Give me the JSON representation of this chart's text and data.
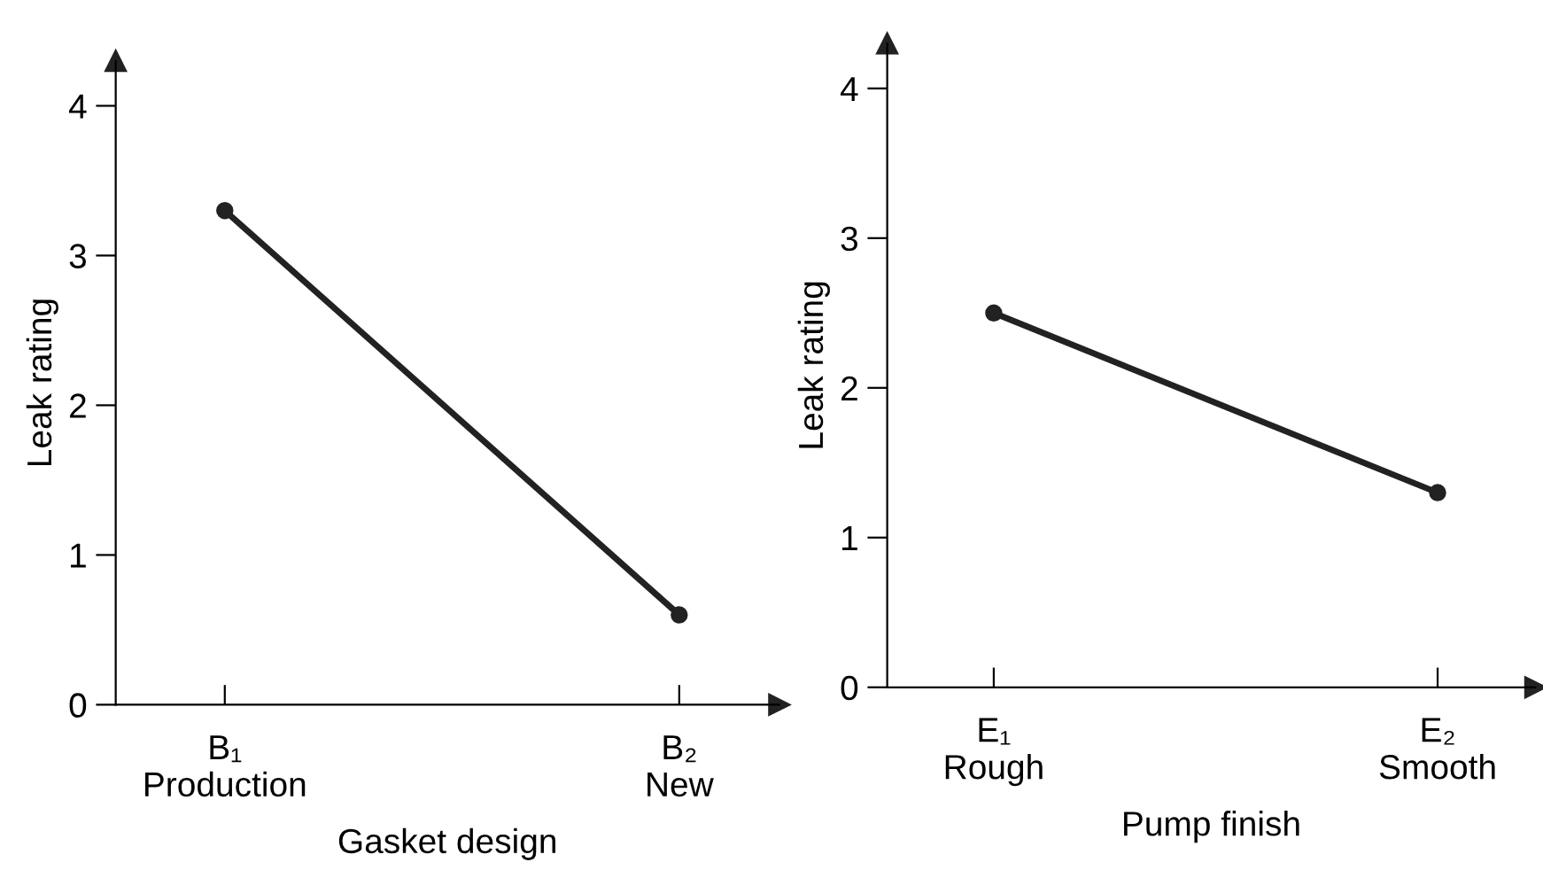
{
  "chart_data": [
    {
      "type": "line",
      "xlabel": "Gasket design",
      "ylabel": "Leak rating",
      "categories": [
        "B₁\nProduction",
        "B₂\nNew"
      ],
      "values": [
        3.3,
        0.6
      ],
      "color": "#222222",
      "marker": "circle",
      "line_style": "solid",
      "ylim": [
        0,
        4.3
      ],
      "yticks": [
        0,
        1,
        2,
        3,
        4
      ],
      "grid": false,
      "legend": false
    },
    {
      "type": "line",
      "xlabel": "Pump finish",
      "ylabel": "Leak rating",
      "categories": [
        "E₁\nRough",
        "E₂\nSmooth"
      ],
      "values": [
        2.5,
        1.3
      ],
      "color": "#222222",
      "marker": "circle",
      "line_style": "solid",
      "ylim": [
        0,
        4.3
      ],
      "yticks": [
        0,
        1,
        2,
        3,
        4
      ],
      "grid": false,
      "legend": false
    }
  ]
}
